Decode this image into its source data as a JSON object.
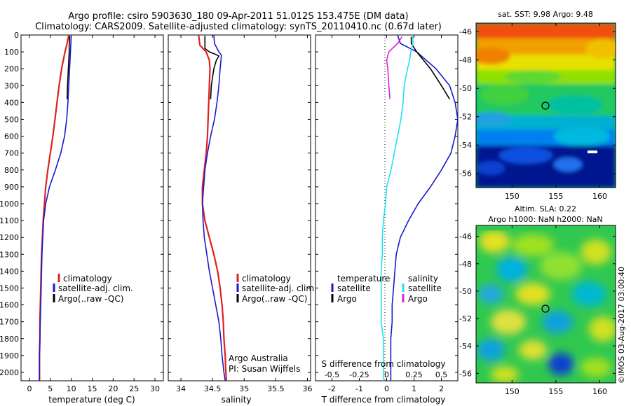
{
  "title": {
    "line1": "Argo profile: csiro 5903630_180 09-Apr-2011 51.012S 153.475E (DM data)",
    "line2": "Climatology: CARS2009. Satellite-adjusted climatology: synTS_20110410.nc (0.67d later)"
  },
  "colors": {
    "climatology": "#e02020",
    "satellite": "#1a1acc",
    "argo": "#000000",
    "sal_satellite": "#22e0f0",
    "sal_argo": "#e020e0"
  },
  "depth_ticks": [
    "0",
    "100",
    "200",
    "300",
    "400",
    "500",
    "600",
    "700",
    "800",
    "900",
    "1000",
    "1100",
    "1200",
    "1300",
    "1400",
    "1500",
    "1600",
    "1700",
    "1800",
    "1900",
    "2000"
  ],
  "legend": {
    "climatology": "climatology",
    "satellite_adj": "satellite-adj. clim.",
    "argo": "Argo(..raw -QC)"
  },
  "diff_legend": {
    "temperature": "temperature",
    "salinity": "salinity",
    "satellite": "satellite",
    "argo": "Argo"
  },
  "credit": {
    "org": "Argo Australia",
    "pi": "PI: Susan Wijffels"
  },
  "stamp": "©IMOS 03-Aug-2017 03:00:40",
  "map_top": {
    "title": "sat. SST: 9.98 Argo: 9.48",
    "y_ticks": [
      "-46",
      "-48",
      "-50",
      "-52",
      "-54",
      "-56"
    ],
    "x_ticks": [
      "150",
      "155",
      "160"
    ]
  },
  "map_bottom": {
    "title1": "Altim. SLA: 0.22",
    "title2": "Argo h1000: NaN h2000: NaN",
    "y_ticks": [
      "-46",
      "-48",
      "-50",
      "-52",
      "-54",
      "-56"
    ],
    "x_ticks": [
      "150",
      "155",
      "160"
    ]
  },
  "chart_data": [
    {
      "type": "line",
      "xlabel": "temperature (deg C)",
      "x_ticks": [
        "0",
        "5",
        "10",
        "15",
        "20",
        "25",
        "30"
      ],
      "xlim": [
        -2,
        32
      ],
      "ylim": [
        2050,
        0
      ],
      "series": [
        {
          "name": "climatology",
          "points": [
            [
              9.4,
              0
            ],
            [
              9.0,
              50
            ],
            [
              8.5,
              100
            ],
            [
              7.7,
              200
            ],
            [
              7.1,
              300
            ],
            [
              6.6,
              400
            ],
            [
              6.1,
              500
            ],
            [
              5.6,
              600
            ],
            [
              5.0,
              700
            ],
            [
              4.4,
              800
            ],
            [
              3.9,
              900
            ],
            [
              3.6,
              1000
            ],
            [
              3.3,
              1100
            ],
            [
              3.1,
              1200
            ],
            [
              2.9,
              1300
            ],
            [
              2.8,
              1400
            ],
            [
              2.7,
              1500
            ],
            [
              2.6,
              1600
            ],
            [
              2.5,
              1700
            ],
            [
              2.5,
              1800
            ],
            [
              2.4,
              1900
            ],
            [
              2.4,
              2000
            ],
            [
              2.4,
              2050
            ]
          ]
        },
        {
          "name": "satellite-adj. clim.",
          "points": [
            [
              10.0,
              0
            ],
            [
              9.9,
              50
            ],
            [
              9.8,
              100
            ],
            [
              9.6,
              200
            ],
            [
              9.4,
              300
            ],
            [
              9.2,
              400
            ],
            [
              8.9,
              500
            ],
            [
              8.4,
              600
            ],
            [
              7.5,
              700
            ],
            [
              6.2,
              800
            ],
            [
              4.8,
              900
            ],
            [
              3.9,
              1000
            ],
            [
              3.4,
              1100
            ],
            [
              3.2,
              1200
            ],
            [
              3.0,
              1300
            ],
            [
              2.9,
              1400
            ],
            [
              2.8,
              1500
            ],
            [
              2.7,
              1600
            ],
            [
              2.6,
              1700
            ],
            [
              2.5,
              1800
            ],
            [
              2.4,
              1900
            ],
            [
              2.4,
              2000
            ],
            [
              2.4,
              2050
            ]
          ]
        },
        {
          "name": "Argo(..raw -QC)",
          "points": [
            [
              9.6,
              5
            ],
            [
              9.6,
              30
            ],
            [
              9.5,
              60
            ],
            [
              9.5,
              100
            ],
            [
              9.4,
              150
            ],
            [
              9.3,
              200
            ],
            [
              9.2,
              250
            ],
            [
              9.1,
              300
            ],
            [
              9.0,
              380
            ]
          ]
        }
      ]
    },
    {
      "type": "line",
      "xlabel": "salinity",
      "x_ticks": [
        "34",
        "34.5",
        "35",
        "35.5",
        "36"
      ],
      "xlim": [
        33.8,
        36.05
      ],
      "ylim": [
        2050,
        0
      ],
      "series": [
        {
          "name": "climatology",
          "points": [
            [
              34.28,
              0
            ],
            [
              34.3,
              60
            ],
            [
              34.4,
              100
            ],
            [
              34.45,
              150
            ],
            [
              34.46,
              200
            ],
            [
              34.45,
              300
            ],
            [
              34.44,
              400
            ],
            [
              34.43,
              500
            ],
            [
              34.42,
              600
            ],
            [
              34.4,
              700
            ],
            [
              34.37,
              800
            ],
            [
              34.34,
              900
            ],
            [
              34.34,
              1000
            ],
            [
              34.38,
              1100
            ],
            [
              34.45,
              1200
            ],
            [
              34.52,
              1300
            ],
            [
              34.58,
              1400
            ],
            [
              34.62,
              1500
            ],
            [
              34.65,
              1600
            ],
            [
              34.67,
              1700
            ],
            [
              34.68,
              1800
            ],
            [
              34.7,
              1900
            ],
            [
              34.71,
              2000
            ],
            [
              34.72,
              2050
            ]
          ]
        },
        {
          "name": "satellite-adj. clim.",
          "points": [
            [
              34.52,
              0
            ],
            [
              34.53,
              50
            ],
            [
              34.6,
              100
            ],
            [
              34.64,
              120
            ],
            [
              34.62,
              200
            ],
            [
              34.6,
              300
            ],
            [
              34.57,
              400
            ],
            [
              34.53,
              500
            ],
            [
              34.47,
              600
            ],
            [
              34.42,
              700
            ],
            [
              34.38,
              800
            ],
            [
              34.36,
              900
            ],
            [
              34.34,
              1000
            ],
            [
              34.35,
              1100
            ],
            [
              34.37,
              1200
            ],
            [
              34.41,
              1300
            ],
            [
              34.45,
              1400
            ],
            [
              34.5,
              1500
            ],
            [
              34.55,
              1600
            ],
            [
              34.6,
              1700
            ],
            [
              34.63,
              1800
            ],
            [
              34.65,
              1900
            ],
            [
              34.68,
              2000
            ],
            [
              34.7,
              2050
            ]
          ]
        },
        {
          "name": "Argo(..raw -QC)",
          "points": [
            [
              34.38,
              5
            ],
            [
              34.38,
              80
            ],
            [
              34.45,
              100
            ],
            [
              34.55,
              115
            ],
            [
              34.6,
              125
            ],
            [
              34.56,
              150
            ],
            [
              34.52,
              200
            ],
            [
              34.5,
              250
            ],
            [
              34.48,
              300
            ],
            [
              34.47,
              380
            ]
          ]
        }
      ]
    },
    {
      "type": "line",
      "xlabel": "T difference from climatology",
      "x2label": "S difference from climatology",
      "x_ticks": [
        "-2",
        "-1",
        "0",
        "1",
        "2"
      ],
      "x2_ticks": [
        "-0.5",
        "-0.25",
        "0",
        "0.25",
        "0.5"
      ],
      "xlim": [
        -2.6,
        2.6
      ],
      "ylim": [
        2050,
        0
      ],
      "series": [
        {
          "name": "temperature satellite",
          "points": [
            [
              0.4,
              0
            ],
            [
              0.5,
              50
            ],
            [
              1.1,
              100
            ],
            [
              1.8,
              200
            ],
            [
              2.3,
              300
            ],
            [
              2.5,
              400
            ],
            [
              2.6,
              500
            ],
            [
              2.5,
              600
            ],
            [
              2.35,
              700
            ],
            [
              2.0,
              800
            ],
            [
              1.6,
              900
            ],
            [
              1.15,
              1000
            ],
            [
              0.8,
              1100
            ],
            [
              0.5,
              1200
            ],
            [
              0.35,
              1300
            ],
            [
              0.3,
              1400
            ],
            [
              0.25,
              1500
            ],
            [
              0.2,
              1600
            ],
            [
              0.2,
              1700
            ],
            [
              0.15,
              1800
            ],
            [
              0.15,
              1900
            ],
            [
              0.15,
              2000
            ],
            [
              0.15,
              2050
            ]
          ]
        },
        {
          "name": "temperature Argo",
          "points": [
            [
              0.9,
              10
            ],
            [
              0.9,
              50
            ],
            [
              1.1,
              100
            ],
            [
              1.6,
              200
            ],
            [
              2.0,
              300
            ],
            [
              2.3,
              380
            ]
          ]
        },
        {
          "name": "salinity satellite",
          "points": [
            [
              0.24,
              0
            ],
            [
              0.24,
              50
            ],
            [
              0.22,
              100
            ],
            [
              0.21,
              150
            ],
            [
              0.19,
              200
            ],
            [
              0.16,
              300
            ],
            [
              0.15,
              400
            ],
            [
              0.13,
              500
            ],
            [
              0.1,
              600
            ],
            [
              0.07,
              700
            ],
            [
              0.04,
              800
            ],
            [
              0.0,
              900
            ],
            [
              -0.01,
              1000
            ],
            [
              -0.03,
              1100
            ],
            [
              -0.04,
              1200
            ],
            [
              -0.04,
              1300
            ],
            [
              -0.05,
              1400
            ],
            [
              -0.05,
              1500
            ],
            [
              -0.05,
              1600
            ],
            [
              -0.05,
              1700
            ],
            [
              -0.03,
              1800
            ],
            [
              -0.03,
              1900
            ],
            [
              -0.03,
              2000
            ],
            [
              -0.03,
              2050
            ]
          ]
        },
        {
          "name": "salinity Argo",
          "points": [
            [
              0.14,
              10
            ],
            [
              0.1,
              50
            ],
            [
              0.02,
              100
            ],
            [
              0.0,
              150
            ],
            [
              0.01,
              200
            ],
            [
              0.02,
              300
            ],
            [
              0.03,
              380
            ]
          ]
        }
      ]
    }
  ]
}
